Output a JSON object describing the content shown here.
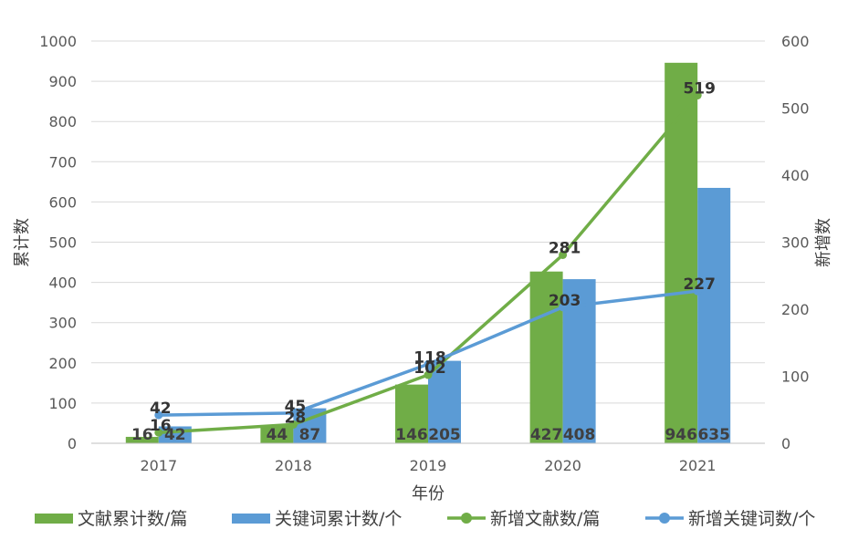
{
  "chart_data": {
    "type": "bar+line",
    "categories": [
      "2017",
      "2018",
      "2019",
      "2020",
      "2021"
    ],
    "xlabel": "年份",
    "ylabel_left": "累计数",
    "ylabel_right": "新增数",
    "ylim_left": [
      0,
      1000
    ],
    "yticks_left": [
      "0",
      "100",
      "200",
      "300",
      "400",
      "500",
      "600",
      "700",
      "800",
      "900",
      "1000"
    ],
    "ylim_right": [
      0,
      600
    ],
    "yticks_right": [
      "0",
      "100",
      "200",
      "300",
      "400",
      "500",
      "600"
    ],
    "grid": true,
    "legend_position": "bottom",
    "bar_series": [
      {
        "name": "文献累计数/篇",
        "color": "#70AD47",
        "values": [
          16,
          44,
          146,
          427,
          946
        ],
        "labels": [
          "16",
          "44",
          "146",
          "427",
          "946"
        ]
      },
      {
        "name": "关键词累计数/个",
        "color": "#5B9BD5",
        "values": [
          42,
          87,
          205,
          408,
          635
        ],
        "labels": [
          "42",
          "87",
          "205",
          "408",
          "635"
        ]
      }
    ],
    "line_series": [
      {
        "name": "新增文献数/篇",
        "color": "#70AD47",
        "values": [
          16,
          28,
          102,
          281,
          519
        ],
        "labels": [
          "16",
          "28",
          "102",
          "281",
          "519"
        ]
      },
      {
        "name": "新增关键词数/个",
        "color": "#5B9BD5",
        "values": [
          42,
          45,
          118,
          203,
          227
        ],
        "labels": [
          "42",
          "45",
          "118",
          "203",
          "227"
        ]
      }
    ]
  }
}
